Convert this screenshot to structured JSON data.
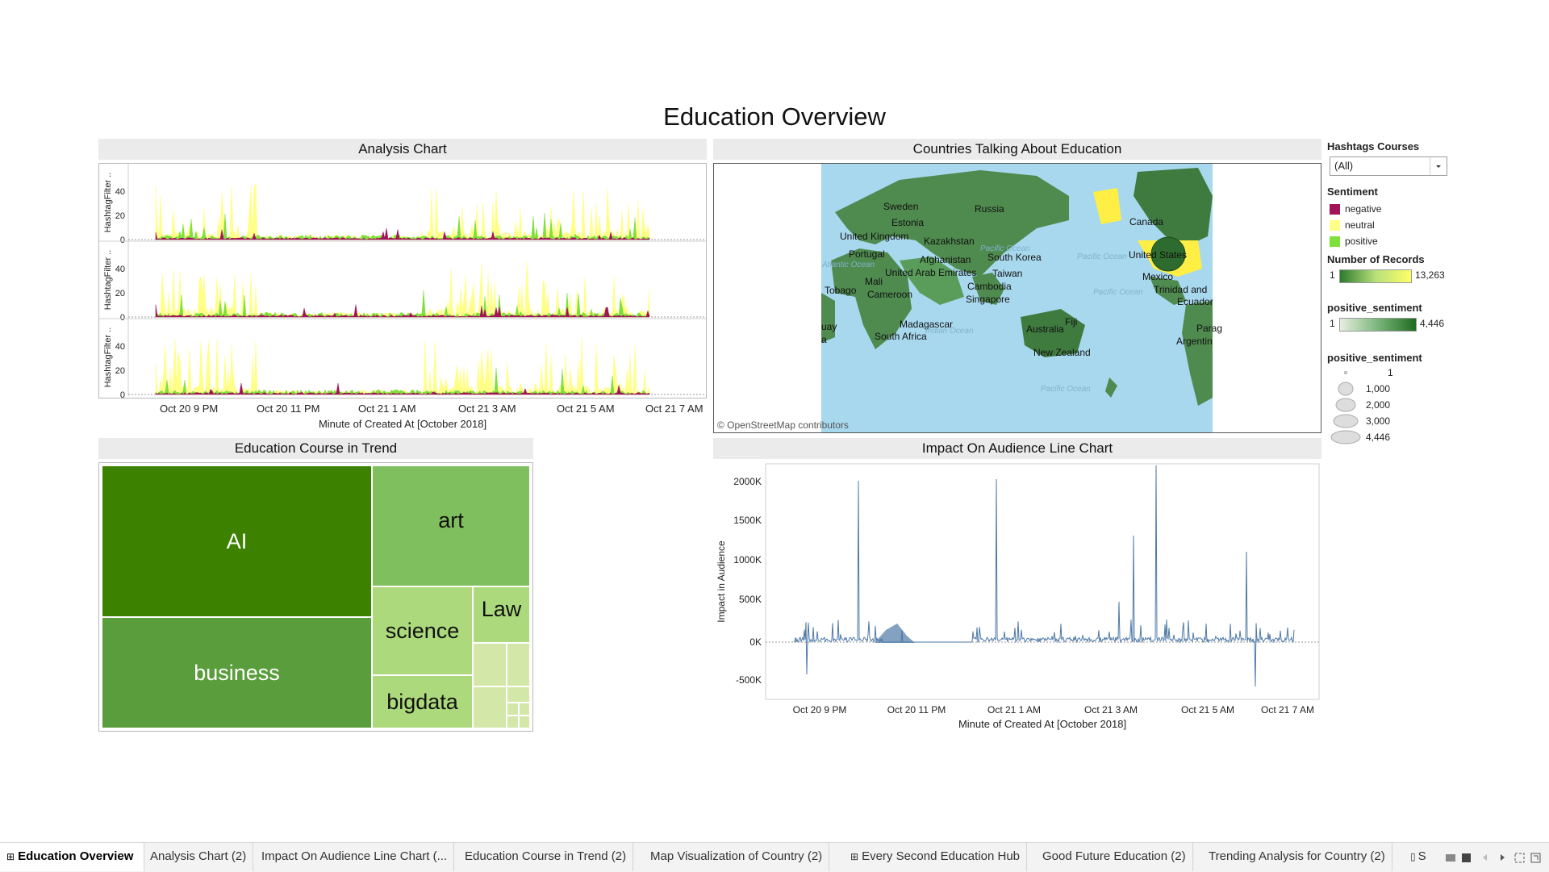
{
  "dashboard_title": "Education Overview",
  "analysis_chart": {
    "title": "Analysis Chart",
    "row_axis_label": "HashtagFilter ..",
    "y_ticks": [
      "40",
      "20",
      "0"
    ],
    "x_ticks": [
      "Oct 20 9 PM",
      "Oct 20 11 PM",
      "Oct 21 1 AM",
      "Oct 21 3 AM",
      "Oct 21 5 AM",
      "Oct 21 7 AM"
    ],
    "x_axis_title": "Minute of Created At [October 2018]"
  },
  "map": {
    "title": "Countries Talking About Education",
    "attribution": "© OpenStreetMap contributors",
    "country_labels": [
      "Sweden",
      "Russia",
      "Estonia",
      "United Kingdom",
      "Kazakhstan",
      "Portugal",
      "Afghanistan",
      "South Korea",
      "Mali",
      "United Arab Emirates",
      "Taiwan",
      "Tobago",
      "Cameroon",
      "Cambodia",
      "Singapore",
      "Madagascar",
      "Australia",
      "Fiji",
      "South Africa",
      "New Zealand",
      "Canada",
      "United States",
      "Mexico",
      "Trinidad and",
      "Ecuador",
      "Parag",
      "Argentin",
      "uay",
      "a"
    ],
    "ocean_labels": [
      "Atlantic Ocean",
      "Pacific Ocean",
      "Pacific Ocean",
      "Indian Ocean",
      "Pacific Ocean",
      "Pacific Ocean"
    ]
  },
  "legend": {
    "filter_title": "Hashtags Courses",
    "filter_value": "(All)",
    "sentiment_title": "Sentiment",
    "sentiment_items": [
      {
        "label": "negative",
        "color": "#a4125a"
      },
      {
        "label": "neutral",
        "color": "#ffff88"
      },
      {
        "label": "positive",
        "color": "#7fe03a"
      }
    ],
    "records_title": "Number of Records",
    "records_min": "1",
    "records_max": "13,263",
    "pos_color_title": "positive_sentiment",
    "pos_color_min": "1",
    "pos_color_max": "4,446",
    "pos_size_title": "positive_sentiment",
    "pos_size_items": [
      "1",
      "1,000",
      "2,000",
      "3,000",
      "4,446"
    ]
  },
  "treemap": {
    "title": "Education Course in Trend",
    "labels": [
      "AI",
      "business",
      "art",
      "science",
      "bigdata",
      "Law"
    ]
  },
  "impact_chart": {
    "title": "Impact On Audience Line Chart",
    "y_axis_title": "Impact  in Audience",
    "y_ticks": [
      "2000K",
      "1500K",
      "1000K",
      "500K",
      "0K",
      "-500K"
    ],
    "x_ticks": [
      "Oct 20 9 PM",
      "Oct 20 11 PM",
      "Oct 21 1 AM",
      "Oct 21 3 AM",
      "Oct 21 5 AM",
      "Oct 21 7 AM"
    ],
    "x_axis_title": "Minute of Created At [October 2018]"
  },
  "tabs": [
    {
      "label": "Education Overview",
      "active": true,
      "icon": "grid-icon"
    },
    {
      "label": "Analysis Chart (2)"
    },
    {
      "label": "Impact On Audience Line Chart (..."
    },
    {
      "label": "Education Course in Trend (2)"
    },
    {
      "label": "Map Visualization of Country (2)"
    },
    {
      "label": "Every Second Education Hub",
      "icon": "grid-icon"
    },
    {
      "label": "Good Future Education (2)"
    },
    {
      "label": "Trending Analysis for Country (2)"
    },
    {
      "label": "S",
      "icon": "book-icon"
    }
  ],
  "colors": {
    "treemap_ai": "#3d8100",
    "treemap_business": "#5a9d3c",
    "treemap_art": "#80bf5e",
    "treemap_science": "#acd97b",
    "treemap_small": "#d3e7a8",
    "impact_line": "#4e79a7",
    "land": "#4f8a4f",
    "ocean": "#a8d8ee"
  }
}
